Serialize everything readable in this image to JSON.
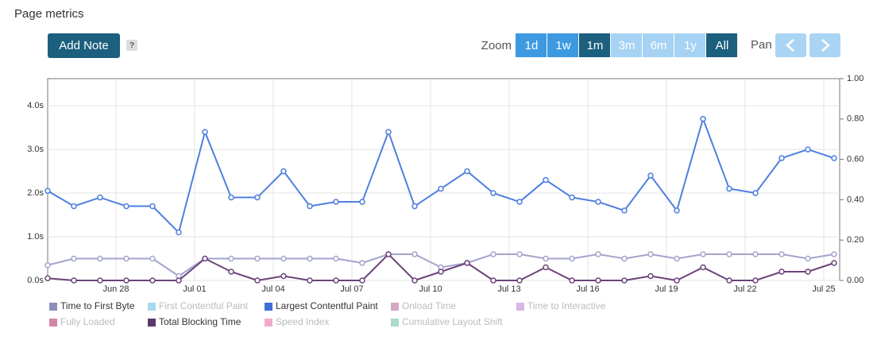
{
  "header": {
    "title": "Page metrics",
    "add_note": "Add Note",
    "help": "?",
    "zoom_label": "Zoom",
    "pan_label": "Pan",
    "zoom_buttons": [
      {
        "label": "1d",
        "state": "enabled"
      },
      {
        "label": "1w",
        "state": "enabled"
      },
      {
        "label": "1m",
        "state": "selected"
      },
      {
        "label": "3m",
        "state": "disabled"
      },
      {
        "label": "6m",
        "state": "disabled"
      },
      {
        "label": "1y",
        "state": "disabled"
      },
      {
        "label": "All",
        "state": "selected"
      }
    ]
  },
  "chart_data": {
    "type": "line",
    "categories": [
      null,
      null,
      null,
      "Jun 28",
      null,
      null,
      "Jul 01",
      null,
      null,
      "Jul 04",
      null,
      null,
      "Jul 07",
      null,
      null,
      "Jul 10",
      null,
      null,
      "Jul 13",
      null,
      null,
      "Jul 16",
      null,
      null,
      "Jul 19",
      null,
      null,
      "Jul 22",
      null,
      null,
      "Jul 25"
    ],
    "ylim": [
      0,
      4.62
    ],
    "yticks": [
      {
        "value": 0,
        "label": "0.0s"
      },
      {
        "value": 1,
        "label": "1.0s"
      },
      {
        "value": 2,
        "label": "2.0s"
      },
      {
        "value": 3,
        "label": "3.0s"
      },
      {
        "value": 4,
        "label": "4.0s"
      }
    ],
    "y2lim": [
      0,
      1
    ],
    "y2ticks": [
      {
        "value": 0,
        "label": "0.00"
      },
      {
        "value": 0.2,
        "label": "0.20"
      },
      {
        "value": 0.4,
        "label": "0.40"
      },
      {
        "value": 0.6,
        "label": "0.60"
      },
      {
        "value": 0.8,
        "label": "0.80"
      },
      {
        "value": 1,
        "label": "1.00"
      }
    ],
    "grid": true,
    "series": [
      {
        "name": "Time to First Byte",
        "color": "#a3a4cc",
        "legend_color": "#8e8fb8",
        "values": [
          0.35,
          0.5,
          0.5,
          0.5,
          0.5,
          0.1,
          0.5,
          0.5,
          0.5,
          0.5,
          0.5,
          0.5,
          0.4,
          0.6,
          0.6,
          0.3,
          0.4,
          0.6,
          0.6,
          0.5,
          0.5,
          0.6,
          0.5,
          0.6,
          0.5,
          0.6,
          0.6,
          0.6,
          0.6,
          0.5,
          0.6
        ]
      },
      {
        "name": "Largest Contentful Paint",
        "color": "#4f7fdf",
        "legend_color": "#3d6fd6",
        "values": [
          2.05,
          1.7,
          1.9,
          1.7,
          1.7,
          1.1,
          3.4,
          1.9,
          1.9,
          2.5,
          1.7,
          1.8,
          1.8,
          3.4,
          1.7,
          2.1,
          2.5,
          2.0,
          1.8,
          2.3,
          1.9,
          1.8,
          1.6,
          2.4,
          1.6,
          3.7,
          2.1,
          2.0,
          2.8,
          3.0,
          2.8
        ]
      },
      {
        "name": "Total Blocking Time",
        "color": "#6a4379",
        "legend_color": "#5b3a6b",
        "values": [
          0.05,
          0,
          0,
          0,
          0,
          0,
          0.5,
          0.2,
          0,
          0.1,
          0,
          0,
          0,
          0.6,
          0,
          0.2,
          0.4,
          0,
          0,
          0.3,
          0,
          0,
          0,
          0.1,
          0,
          0.3,
          0,
          0,
          0.2,
          0.2,
          0.4
        ]
      }
    ],
    "hidden_series": [
      {
        "name": "First Contentful Paint",
        "color": "#a6d9f0"
      },
      {
        "name": "Onload Time",
        "color": "#d4a7c4"
      },
      {
        "name": "Time to Interactive",
        "color": "#d7b6e4"
      },
      {
        "name": "Fully Loaded",
        "color": "#d486a6"
      },
      {
        "name": "Speed Index",
        "color": "#f2aacc"
      },
      {
        "name": "Cumulative Layout Shift",
        "color": "#a9ddc9"
      }
    ]
  }
}
